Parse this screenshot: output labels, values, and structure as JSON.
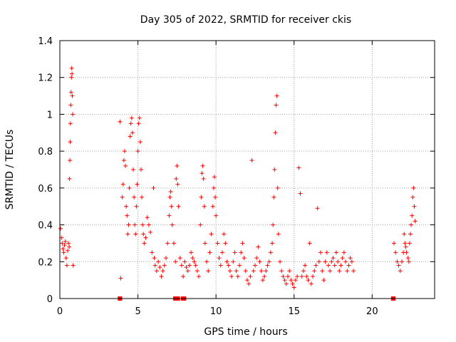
{
  "chart_data": {
    "type": "scatter",
    "title": "Day 305 of 2022, SRMTID for receiver ckis",
    "xlabel": "GPS time / hours",
    "ylabel": "SRMTID / TECUs",
    "xlim": [
      0,
      24
    ],
    "ylim": [
      0,
      1.4
    ],
    "xticks": [
      0,
      5,
      10,
      15,
      20
    ],
    "xtick_labels": [
      "0",
      "5",
      "10",
      "15",
      "20"
    ],
    "yticks": [
      0,
      0.2,
      0.4,
      0.6,
      0.8,
      1,
      1.2,
      1.4
    ],
    "ytick_labels": [
      "0",
      "0.2",
      "0.4",
      "0.6",
      "0.8",
      "1",
      "1.2",
      "1.4"
    ],
    "grid": true,
    "marker": "+",
    "series": [
      {
        "name": "SRMTID",
        "color": "#ff0000",
        "points": [
          [
            0.05,
            0.38
          ],
          [
            0.1,
            0.33
          ],
          [
            0.15,
            0.3
          ],
          [
            0.2,
            0.27
          ],
          [
            0.25,
            0.25
          ],
          [
            0.3,
            0.29
          ],
          [
            0.35,
            0.31
          ],
          [
            0.4,
            0.22
          ],
          [
            0.45,
            0.18
          ],
          [
            0.5,
            0.26
          ],
          [
            0.55,
            0.3
          ],
          [
            0.6,
            0.28
          ],
          [
            0.62,
            0.65
          ],
          [
            0.64,
            0.75
          ],
          [
            0.66,
            0.85
          ],
          [
            0.68,
            0.95
          ],
          [
            0.7,
            1.05
          ],
          [
            0.72,
            1.12
          ],
          [
            0.74,
            1.2
          ],
          [
            0.76,
            1.25
          ],
          [
            0.78,
            1.22
          ],
          [
            0.8,
            1.1
          ],
          [
            0.82,
            1.0
          ],
          [
            0.85,
            0.18
          ],
          [
            3.85,
            0.96
          ],
          [
            3.9,
            0.11
          ],
          [
            4.0,
            0.55
          ],
          [
            4.05,
            0.62
          ],
          [
            4.1,
            0.75
          ],
          [
            4.15,
            0.8
          ],
          [
            4.2,
            0.72
          ],
          [
            4.25,
            0.5
          ],
          [
            4.3,
            0.45
          ],
          [
            4.35,
            0.35
          ],
          [
            4.4,
            0.4
          ],
          [
            4.45,
            0.6
          ],
          [
            4.5,
            0.88
          ],
          [
            4.55,
            0.95
          ],
          [
            4.6,
            0.98
          ],
          [
            4.65,
            0.9
          ],
          [
            4.7,
            0.7
          ],
          [
            4.75,
            0.55
          ],
          [
            4.8,
            0.4
          ],
          [
            4.85,
            0.35
          ],
          [
            4.9,
            0.5
          ],
          [
            4.95,
            0.62
          ],
          [
            5.0,
            0.8
          ],
          [
            5.05,
            0.95
          ],
          [
            5.1,
            0.98
          ],
          [
            5.15,
            0.85
          ],
          [
            5.2,
            0.7
          ],
          [
            5.25,
            0.55
          ],
          [
            5.3,
            0.4
          ],
          [
            5.35,
            0.35
          ],
          [
            5.4,
            0.3
          ],
          [
            5.5,
            0.33
          ],
          [
            5.6,
            0.44
          ],
          [
            5.7,
            0.4
          ],
          [
            5.8,
            0.36
          ],
          [
            5.9,
            0.25
          ],
          [
            6.0,
            0.6
          ],
          [
            6.05,
            0.22
          ],
          [
            6.1,
            0.18
          ],
          [
            6.2,
            0.15
          ],
          [
            6.3,
            0.2
          ],
          [
            6.4,
            0.17
          ],
          [
            6.5,
            0.12
          ],
          [
            6.6,
            0.15
          ],
          [
            6.7,
            0.18
          ],
          [
            6.8,
            0.22
          ],
          [
            6.9,
            0.3
          ],
          [
            7.0,
            0.45
          ],
          [
            7.05,
            0.55
          ],
          [
            7.1,
            0.58
          ],
          [
            7.15,
            0.5
          ],
          [
            7.2,
            0.4
          ],
          [
            7.3,
            0.3
          ],
          [
            7.4,
            0.2
          ],
          [
            7.45,
            0.65
          ],
          [
            7.5,
            0.72
          ],
          [
            7.55,
            0.62
          ],
          [
            7.6,
            0.5
          ],
          [
            7.7,
            0.22
          ],
          [
            7.8,
            0.18
          ],
          [
            7.9,
            0.12
          ],
          [
            8.0,
            0.2
          ],
          [
            8.1,
            0.17
          ],
          [
            8.2,
            0.15
          ],
          [
            8.3,
            0.18
          ],
          [
            8.4,
            0.25
          ],
          [
            8.5,
            0.22
          ],
          [
            8.6,
            0.2
          ],
          [
            8.7,
            0.18
          ],
          [
            8.8,
            0.15
          ],
          [
            8.9,
            0.12
          ],
          [
            9.0,
            0.4
          ],
          [
            9.05,
            0.55
          ],
          [
            9.1,
            0.68
          ],
          [
            9.15,
            0.72
          ],
          [
            9.2,
            0.65
          ],
          [
            9.25,
            0.5
          ],
          [
            9.3,
            0.3
          ],
          [
            9.4,
            0.2
          ],
          [
            9.5,
            0.15
          ],
          [
            9.6,
            0.25
          ],
          [
            9.7,
            0.35
          ],
          [
            9.8,
            0.5
          ],
          [
            9.85,
            0.6
          ],
          [
            9.9,
            0.66
          ],
          [
            9.95,
            0.55
          ],
          [
            10.0,
            0.45
          ],
          [
            10.1,
            0.3
          ],
          [
            10.2,
            0.22
          ],
          [
            10.3,
            0.18
          ],
          [
            10.4,
            0.25
          ],
          [
            10.5,
            0.35
          ],
          [
            10.6,
            0.3
          ],
          [
            10.7,
            0.2
          ],
          [
            10.8,
            0.18
          ],
          [
            10.9,
            0.15
          ],
          [
            11.0,
            0.12
          ],
          [
            11.1,
            0.2
          ],
          [
            11.2,
            0.25
          ],
          [
            11.3,
            0.15
          ],
          [
            11.4,
            0.12
          ],
          [
            11.5,
            0.18
          ],
          [
            11.6,
            0.25
          ],
          [
            11.7,
            0.3
          ],
          [
            11.8,
            0.22
          ],
          [
            11.9,
            0.15
          ],
          [
            12.0,
            0.1
          ],
          [
            12.1,
            0.08
          ],
          [
            12.2,
            0.12
          ],
          [
            12.3,
            0.75
          ],
          [
            12.4,
            0.15
          ],
          [
            12.5,
            0.18
          ],
          [
            12.6,
            0.22
          ],
          [
            12.7,
            0.28
          ],
          [
            12.8,
            0.2
          ],
          [
            12.9,
            0.15
          ],
          [
            13.0,
            0.1
          ],
          [
            13.1,
            0.12
          ],
          [
            13.2,
            0.15
          ],
          [
            13.3,
            0.18
          ],
          [
            13.4,
            0.2
          ],
          [
            13.5,
            0.25
          ],
          [
            13.6,
            0.3
          ],
          [
            13.65,
            0.4
          ],
          [
            13.7,
            0.55
          ],
          [
            13.75,
            0.7
          ],
          [
            13.8,
            0.9
          ],
          [
            13.85,
            1.05
          ],
          [
            13.9,
            1.1
          ],
          [
            13.95,
            0.6
          ],
          [
            14.0,
            0.35
          ],
          [
            14.1,
            0.2
          ],
          [
            14.2,
            0.15
          ],
          [
            14.3,
            0.12
          ],
          [
            14.4,
            0.1
          ],
          [
            14.5,
            0.08
          ],
          [
            14.6,
            0.12
          ],
          [
            14.7,
            0.15
          ],
          [
            14.8,
            0.1
          ],
          [
            14.9,
            0.08
          ],
          [
            15.0,
            0.06
          ],
          [
            15.1,
            0.1
          ],
          [
            15.2,
            0.12
          ],
          [
            15.3,
            0.71
          ],
          [
            15.4,
            0.57
          ],
          [
            15.5,
            0.12
          ],
          [
            15.6,
            0.15
          ],
          [
            15.7,
            0.18
          ],
          [
            15.8,
            0.12
          ],
          [
            15.9,
            0.1
          ],
          [
            16.0,
            0.3
          ],
          [
            16.1,
            0.08
          ],
          [
            16.2,
            0.12
          ],
          [
            16.3,
            0.15
          ],
          [
            16.4,
            0.18
          ],
          [
            16.5,
            0.49
          ],
          [
            16.6,
            0.2
          ],
          [
            16.7,
            0.25
          ],
          [
            16.8,
            0.15
          ],
          [
            16.9,
            0.1
          ],
          [
            17.0,
            0.2
          ],
          [
            17.1,
            0.25
          ],
          [
            17.2,
            0.18
          ],
          [
            17.3,
            0.15
          ],
          [
            17.4,
            0.2
          ],
          [
            17.5,
            0.22
          ],
          [
            17.6,
            0.18
          ],
          [
            17.7,
            0.25
          ],
          [
            17.8,
            0.2
          ],
          [
            17.9,
            0.15
          ],
          [
            18.0,
            0.18
          ],
          [
            18.1,
            0.22
          ],
          [
            18.2,
            0.25
          ],
          [
            18.3,
            0.2
          ],
          [
            18.4,
            0.15
          ],
          [
            18.5,
            0.18
          ],
          [
            18.6,
            0.22
          ],
          [
            18.7,
            0.2
          ],
          [
            18.8,
            0.15
          ],
          [
            21.4,
            0.3
          ],
          [
            21.5,
            0.25
          ],
          [
            21.6,
            0.2
          ],
          [
            21.7,
            0.18
          ],
          [
            21.8,
            0.15
          ],
          [
            21.9,
            0.2
          ],
          [
            22.0,
            0.25
          ],
          [
            22.05,
            0.35
          ],
          [
            22.1,
            0.3
          ],
          [
            22.15,
            0.28
          ],
          [
            22.2,
            0.25
          ],
          [
            22.3,
            0.22
          ],
          [
            22.35,
            0.2
          ],
          [
            22.4,
            0.3
          ],
          [
            22.45,
            0.35
          ],
          [
            22.5,
            0.4
          ],
          [
            22.55,
            0.45
          ],
          [
            22.6,
            0.55
          ],
          [
            22.65,
            0.6
          ],
          [
            22.7,
            0.5
          ],
          [
            22.75,
            0.42
          ]
        ]
      }
    ],
    "zero_markers": [
      3.8,
      3.9,
      7.35,
      7.45,
      7.6,
      7.85,
      8.0,
      21.3,
      21.4
    ]
  }
}
